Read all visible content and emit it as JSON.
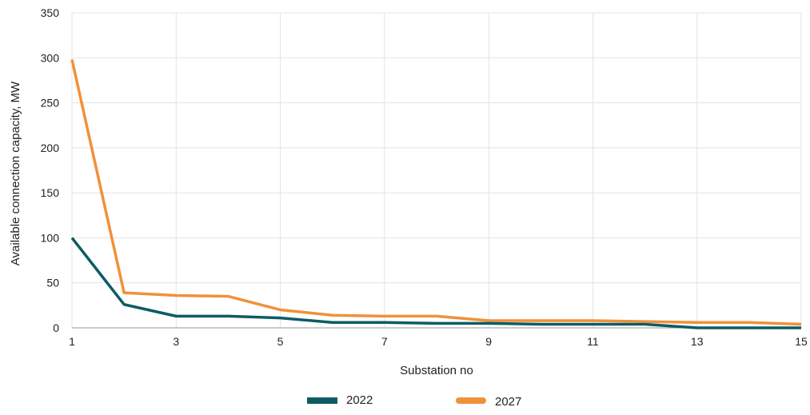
{
  "chart_data": {
    "type": "line",
    "title": "",
    "xlabel": "Substation no",
    "ylabel": "Available connection capacity, MW",
    "x": [
      1,
      2,
      3,
      4,
      5,
      6,
      7,
      8,
      9,
      10,
      11,
      12,
      13,
      14,
      15
    ],
    "xticks": [
      "1",
      "3",
      "5",
      "7",
      "9",
      "11",
      "13",
      "15"
    ],
    "yticks": [
      "0",
      "50",
      "100",
      "150",
      "200",
      "250",
      "300",
      "350"
    ],
    "xlim": [
      1,
      15
    ],
    "ylim": [
      0,
      350
    ],
    "grid": true,
    "legend_position": "bottom",
    "series": [
      {
        "name": "2022",
        "color": "#0d5c63",
        "values": [
          100,
          26,
          13,
          13,
          11,
          6,
          6,
          5,
          5,
          4,
          4,
          4,
          0,
          0,
          0
        ]
      },
      {
        "name": "2027",
        "color": "#f0913a",
        "values": [
          298,
          39,
          36,
          35,
          20,
          14,
          13,
          13,
          8,
          8,
          8,
          7,
          6,
          6,
          4
        ]
      }
    ]
  }
}
